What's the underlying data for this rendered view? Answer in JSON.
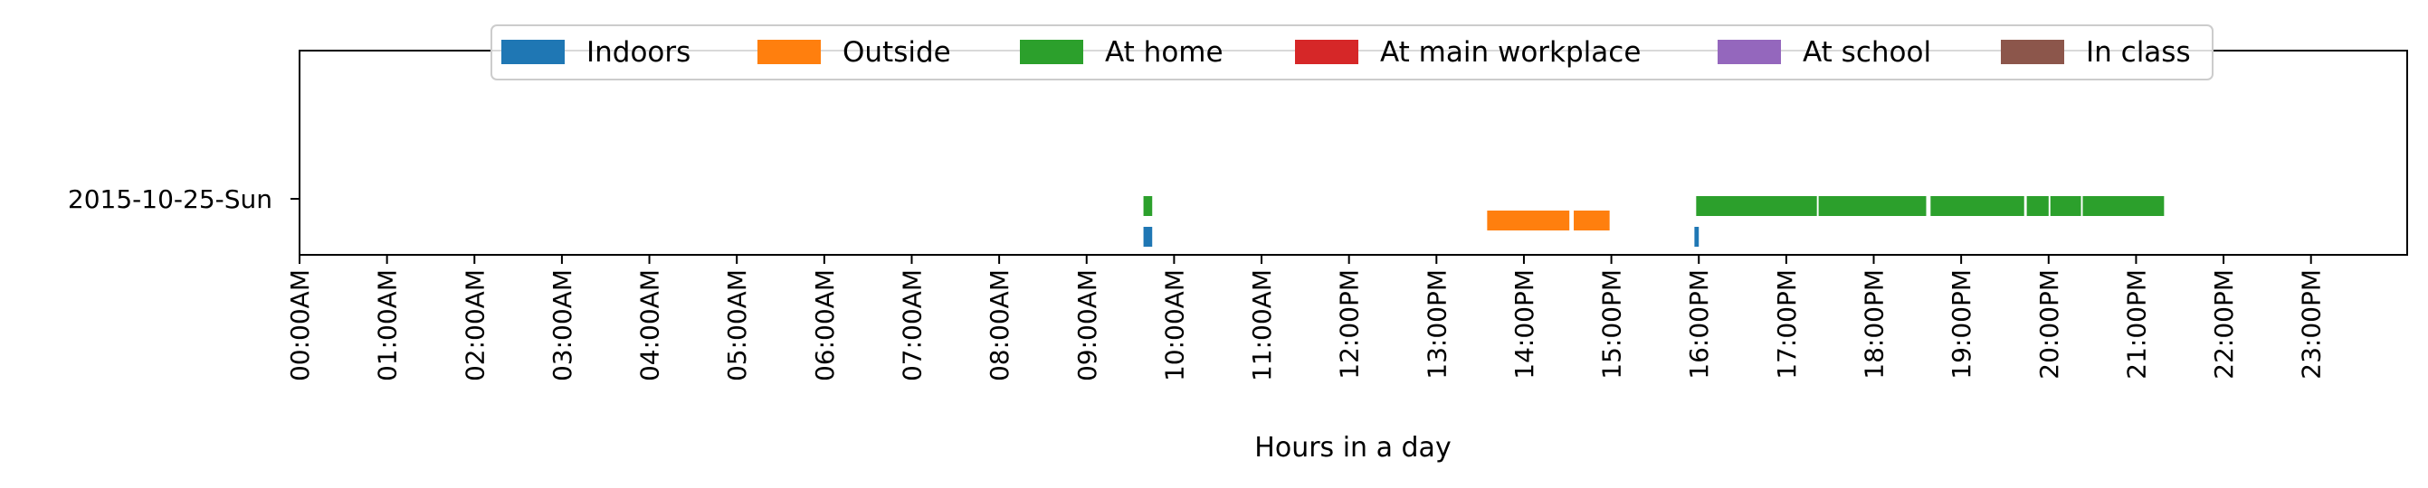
{
  "chart_data": {
    "type": "bar",
    "title": "",
    "xlabel": "Hours in a day",
    "ylabel": "",
    "xlim": [
      0,
      24
    ],
    "y_categories": [
      "2015-10-25-Sun"
    ],
    "x_ticks": [
      "00:00AM",
      "01:00AM",
      "02:00AM",
      "03:00AM",
      "04:00AM",
      "05:00AM",
      "06:00AM",
      "07:00AM",
      "08:00AM",
      "09:00AM",
      "10:00AM",
      "11:00AM",
      "12:00PM",
      "13:00PM",
      "14:00PM",
      "15:00PM",
      "16:00PM",
      "17:00PM",
      "18:00PM",
      "19:00PM",
      "20:00PM",
      "21:00PM",
      "22:00PM",
      "23:00PM"
    ],
    "legend_placement": "top-center",
    "grid": false,
    "series": [
      {
        "name": "Indoors",
        "color": "#1f77b4",
        "segments": [
          [
            9.65,
            9.75
          ],
          [
            15.95,
            16.0
          ]
        ]
      },
      {
        "name": "Outside",
        "color": "#ff7f0e",
        "segments": [
          [
            13.58,
            14.52
          ],
          [
            14.57,
            14.98
          ]
        ]
      },
      {
        "name": "At home",
        "color": "#2ca02c",
        "segments": [
          [
            9.65,
            9.75
          ],
          [
            15.97,
            17.35
          ],
          [
            17.37,
            18.6
          ],
          [
            18.65,
            19.72
          ],
          [
            19.75,
            20.0
          ],
          [
            20.02,
            20.37
          ],
          [
            20.39,
            21.32
          ]
        ]
      },
      {
        "name": "At main workplace",
        "color": "#d62728",
        "segments": []
      },
      {
        "name": "At school",
        "color": "#9467bd",
        "segments": []
      },
      {
        "name": "In class",
        "color": "#8c564b",
        "segments": []
      }
    ]
  }
}
